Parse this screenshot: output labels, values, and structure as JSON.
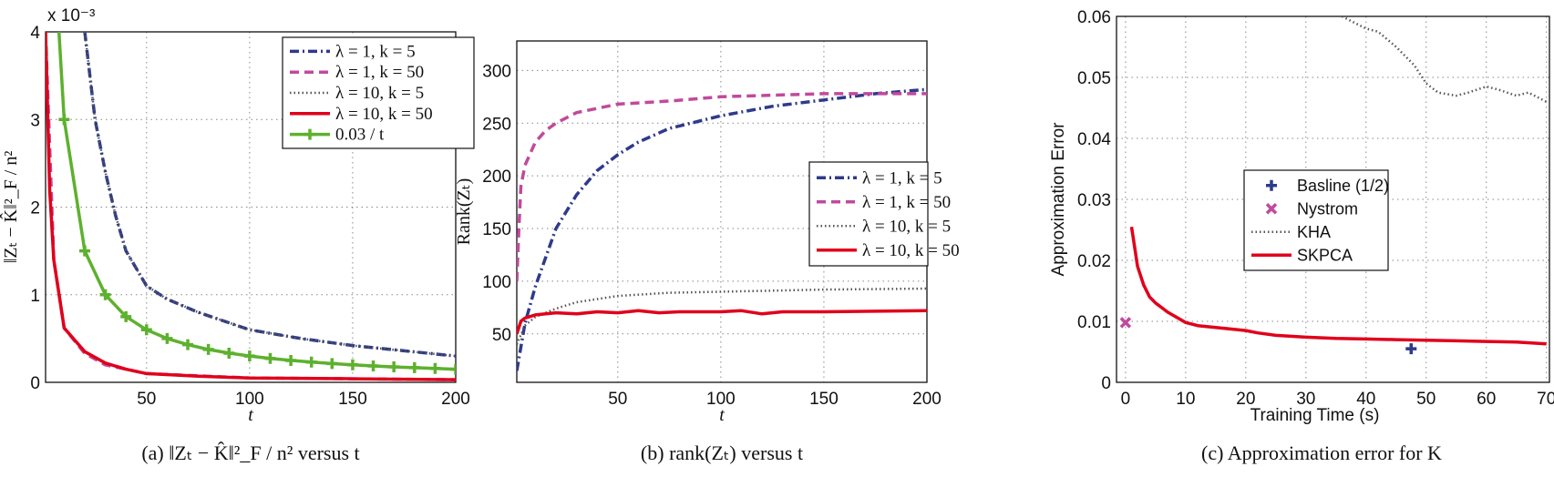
{
  "colors": {
    "blue": "#2e3a8c",
    "magenta": "#c04a9c",
    "dotted": "#555555",
    "red": "#e0001b",
    "green": "#5db12e",
    "grid": "#888888"
  },
  "chart_data": [
    {
      "type": "line",
      "title": "",
      "caption": "(a) ‖Zₜ − K̂‖²_F / n² versus t",
      "xlabel": "t",
      "ylabel": "‖Zₜ − K̂‖²_F / n²",
      "y_multiplier": "x 10⁻³",
      "xlim": [
        1,
        200
      ],
      "ylim": [
        0,
        4
      ],
      "xticks": [
        50,
        100,
        150,
        200
      ],
      "yticks": [
        0,
        1,
        2,
        3,
        4
      ],
      "grid": true,
      "legend_position": "top-right",
      "series": [
        {
          "name": "λ = 1, k = 5",
          "style": "dashdot",
          "color": "blue",
          "x": [
            20,
            25,
            30,
            35,
            40,
            50,
            60,
            75,
            100,
            125,
            150,
            175,
            200
          ],
          "y": [
            4.0,
            3.0,
            2.4,
            1.9,
            1.5,
            1.1,
            0.95,
            0.8,
            0.6,
            0.5,
            0.42,
            0.36,
            0.3
          ]
        },
        {
          "name": "λ = 1, k = 50",
          "style": "dashed",
          "color": "magenta",
          "x": [
            1,
            5,
            10,
            20,
            30,
            50,
            100,
            150,
            200
          ],
          "y": [
            4.0,
            1.4,
            0.62,
            0.33,
            0.2,
            0.1,
            0.05,
            0.04,
            0.03
          ]
        },
        {
          "name": "λ = 10, k = 5",
          "style": "dotted",
          "color": "dotted",
          "x": [
            20,
            25,
            30,
            35,
            40,
            50,
            60,
            75,
            100,
            125,
            150,
            175,
            200
          ],
          "y": [
            4.0,
            3.0,
            2.4,
            1.9,
            1.5,
            1.1,
            0.95,
            0.8,
            0.6,
            0.5,
            0.42,
            0.36,
            0.3
          ]
        },
        {
          "name": "λ = 10, k = 50",
          "style": "solid",
          "color": "red",
          "x": [
            1,
            3,
            5,
            10,
            20,
            30,
            40,
            50,
            75,
            100,
            150,
            200
          ],
          "y": [
            4.0,
            2.2,
            1.4,
            0.62,
            0.35,
            0.22,
            0.15,
            0.1,
            0.07,
            0.05,
            0.04,
            0.03
          ]
        },
        {
          "name": "0.03 / t",
          "style": "solid-plus",
          "color": "green",
          "x": [
            7.5,
            10,
            20,
            30,
            40,
            50,
            60,
            70,
            80,
            90,
            100,
            110,
            120,
            130,
            140,
            150,
            160,
            170,
            180,
            190,
            200
          ],
          "y": [
            4.0,
            3.0,
            1.5,
            1.0,
            0.75,
            0.6,
            0.5,
            0.43,
            0.375,
            0.333,
            0.3,
            0.273,
            0.25,
            0.231,
            0.214,
            0.2,
            0.1875,
            0.176,
            0.167,
            0.158,
            0.15
          ],
          "markers_from": 1
        }
      ]
    },
    {
      "type": "line",
      "caption": "(b) rank(Zₜ) versus t",
      "xlabel": "t",
      "ylabel": "Rank(Zₜ)",
      "xlim": [
        1,
        200
      ],
      "ylim": [
        4,
        328
      ],
      "xticks": [
        50,
        100,
        150,
        200
      ],
      "yticks": [
        50,
        100,
        150,
        200,
        250,
        300
      ],
      "grid": true,
      "legend_position": "center-right",
      "series": [
        {
          "name": "λ = 1, k = 5",
          "style": "dashdot",
          "color": "blue",
          "x": [
            1,
            5,
            10,
            20,
            30,
            40,
            50,
            60,
            75,
            100,
            125,
            150,
            175,
            200
          ],
          "y": [
            15,
            60,
            95,
            150,
            182,
            205,
            220,
            232,
            245,
            257,
            266,
            272,
            278,
            282
          ]
        },
        {
          "name": "λ = 1, k = 50",
          "style": "dashed",
          "color": "magenta",
          "x": [
            1,
            2,
            3,
            5,
            10,
            15,
            20,
            30,
            50,
            75,
            100,
            150,
            200
          ],
          "y": [
            100,
            150,
            190,
            210,
            232,
            243,
            250,
            260,
            268,
            271,
            275,
            278,
            278
          ]
        },
        {
          "name": "λ = 10, k = 5",
          "style": "dotted",
          "color": "dotted",
          "x": [
            1,
            5,
            10,
            20,
            30,
            50,
            75,
            100,
            150,
            200
          ],
          "y": [
            40,
            58,
            66,
            74,
            80,
            86,
            89,
            90,
            92,
            93
          ]
        },
        {
          "name": "λ = 10, k = 50",
          "style": "solid",
          "color": "red",
          "x": [
            1,
            3,
            5,
            10,
            20,
            30,
            40,
            50,
            60,
            70,
            80,
            100,
            110,
            120,
            130,
            150,
            200
          ],
          "y": [
            50,
            62,
            65,
            68,
            70,
            69,
            71,
            70,
            72,
            70,
            71,
            71,
            72,
            69,
            71,
            71,
            72
          ]
        }
      ]
    },
    {
      "type": "line",
      "caption": "(c) Approximation error for K",
      "xlabel": "Training Time (s)",
      "ylabel": "Approximation Error",
      "xlim": [
        -1.5,
        70.5
      ],
      "ylim": [
        0,
        0.06
      ],
      "xticks": [
        0,
        10,
        20,
        30,
        40,
        50,
        60,
        70
      ],
      "yticks": [
        0,
        0.01,
        0.02,
        0.03,
        0.04,
        0.05,
        0.06
      ],
      "grid": true,
      "legend_position": "center",
      "series": [
        {
          "name": "Basline (1/2)",
          "style": "marker-plus",
          "color": "blue",
          "x": [
            47.5
          ],
          "y": [
            0.0055
          ]
        },
        {
          "name": "Nystrom",
          "style": "marker-x",
          "color": "magenta",
          "x": [
            0
          ],
          "y": [
            0.0098
          ]
        },
        {
          "name": "KHA",
          "style": "dotted",
          "color": "dotted",
          "x": [
            36,
            38,
            40,
            42,
            45,
            48,
            50,
            52,
            55,
            57,
            60,
            62,
            65,
            67,
            70
          ],
          "y": [
            0.06,
            0.059,
            0.058,
            0.0575,
            0.055,
            0.052,
            0.049,
            0.0475,
            0.047,
            0.0475,
            0.0485,
            0.048,
            0.047,
            0.0475,
            0.046
          ]
        },
        {
          "name": "SKPCA",
          "style": "solid",
          "color": "red",
          "x": [
            1,
            2,
            3,
            4,
            5,
            7,
            10,
            12,
            15,
            18,
            20,
            22,
            25,
            30,
            35,
            40,
            45,
            50,
            55,
            60,
            65,
            70
          ],
          "y": [
            0.0255,
            0.019,
            0.016,
            0.014,
            0.013,
            0.0115,
            0.0098,
            0.0093,
            0.009,
            0.0087,
            0.0085,
            0.0081,
            0.0077,
            0.0074,
            0.0072,
            0.0071,
            0.007,
            0.0069,
            0.0068,
            0.0067,
            0.0066,
            0.0063
          ]
        }
      ]
    }
  ]
}
